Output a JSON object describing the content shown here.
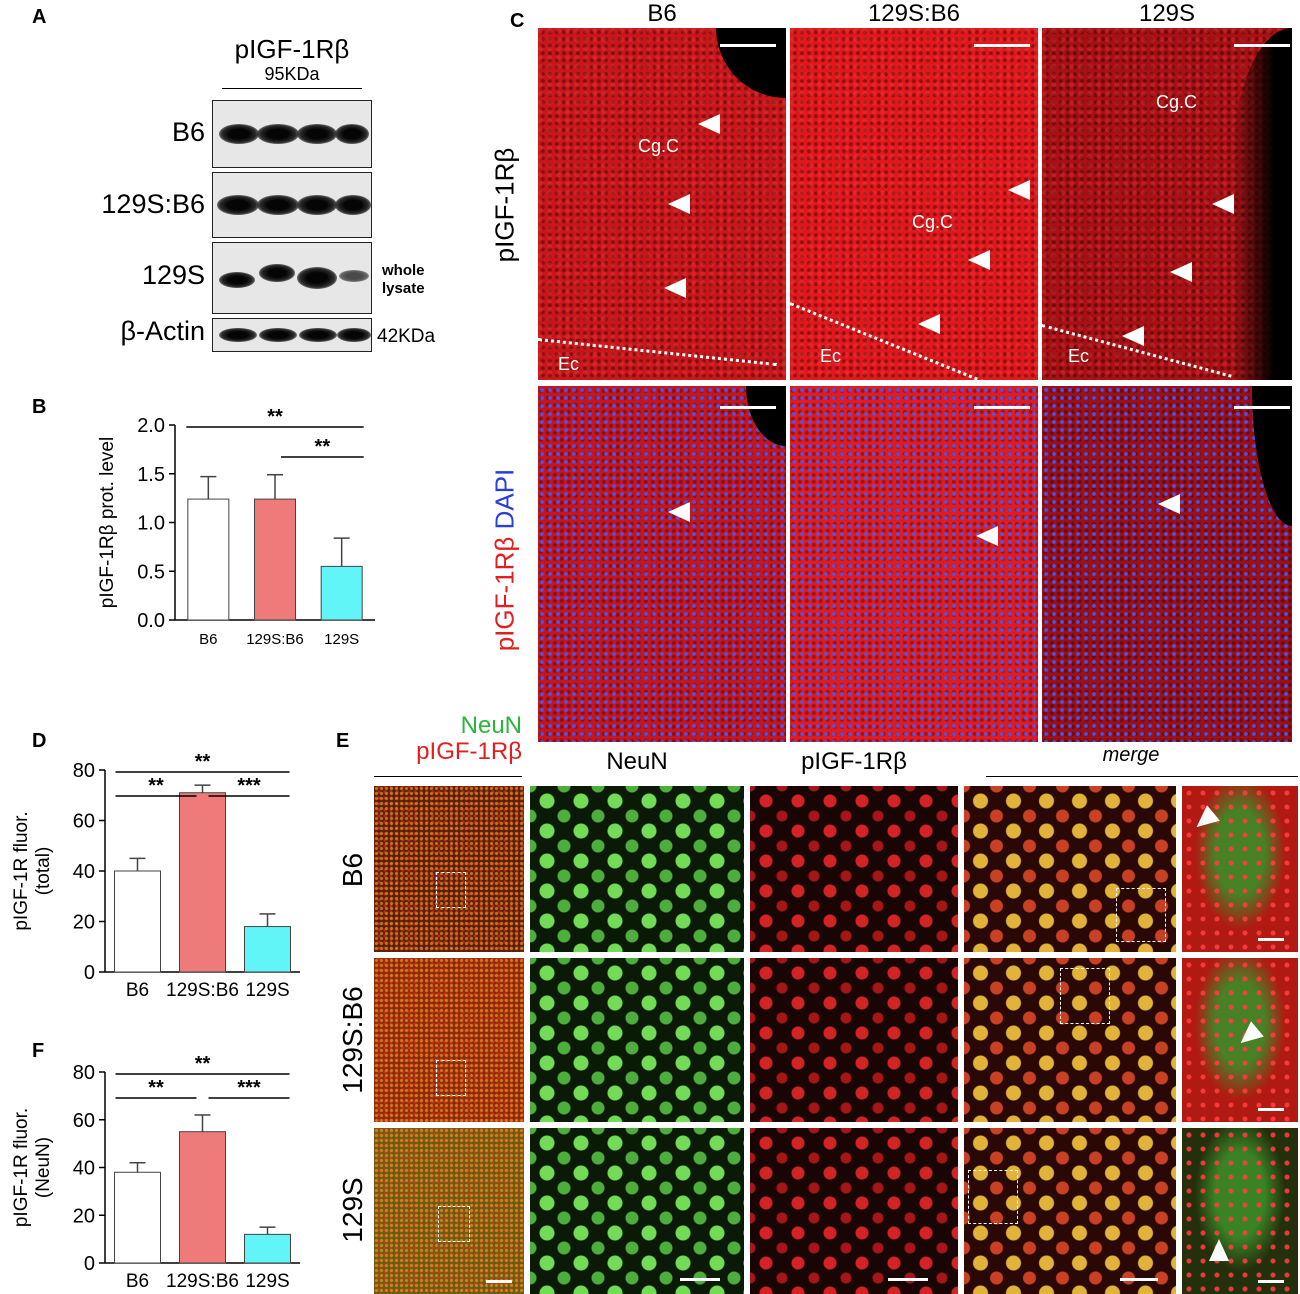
{
  "panel_labels": {
    "a": "A",
    "b": "B",
    "c": "C",
    "d": "D",
    "e": "E",
    "f": "F"
  },
  "blot": {
    "title": "pIGF-1Rβ",
    "mw_top": "95KDa",
    "rows": [
      "B6",
      "129S:B6",
      "129S",
      "β-Actin"
    ],
    "side_note_line1": "whole",
    "side_note_line2": "lysate",
    "mw_bottom": "42KDa"
  },
  "panel_c": {
    "col_headers": [
      "B6",
      "129S:B6",
      "129S"
    ],
    "row_label_top": "pIGF-1Rβ",
    "row_label_bottom_red": "pIGF-1Rβ",
    "row_label_bottom_blue": "DAPI",
    "region_label": "Cg.C",
    "ec_label": "Ec"
  },
  "panel_e": {
    "legend_green": "NeuN",
    "legend_red": "pIGF-1Rβ",
    "col_headers": [
      "NeuN",
      "pIGF-1Rβ",
      "merge"
    ],
    "row_labels": [
      "B6",
      "129S:B6",
      "129S"
    ]
  },
  "chart_data": [
    {
      "id": "B",
      "type": "bar",
      "categories": [
        "B6",
        "129S:B6",
        "129S"
      ],
      "values": [
        1.24,
        1.24,
        0.55
      ],
      "errors": [
        0.23,
        0.25,
        0.29
      ],
      "colors": [
        "#ffffff",
        "#ee7b7a",
        "#62f5f7"
      ],
      "ylabel": "pIGF-1Rβ prot. level",
      "ylim": [
        0,
        2.0
      ],
      "yticks": [
        "0.0",
        "0.5",
        "1.0",
        "1.5",
        "2.0"
      ],
      "significance": [
        {
          "from": "B6",
          "to": "129S",
          "label": "**"
        },
        {
          "from": "129S:B6",
          "to": "129S",
          "label": "**"
        }
      ]
    },
    {
      "id": "D",
      "type": "bar",
      "categories": [
        "B6",
        "129S:B6",
        "129S"
      ],
      "values": [
        40,
        71,
        18
      ],
      "errors": [
        5,
        3,
        5
      ],
      "colors": [
        "#ffffff",
        "#ee7b7a",
        "#62f5f7"
      ],
      "ylabel": "pIGF-1R fluor. (total)",
      "ylim": [
        0,
        80
      ],
      "yticks": [
        "0",
        "20",
        "40",
        "60",
        "80"
      ],
      "significance": [
        {
          "from": "B6",
          "to": "129S",
          "label": "**"
        },
        {
          "from": "B6",
          "to": "129S:B6",
          "label": "**"
        },
        {
          "from": "129S:B6",
          "to": "129S",
          "label": "***"
        }
      ]
    },
    {
      "id": "F",
      "type": "bar",
      "categories": [
        "B6",
        "129S:B6",
        "129S"
      ],
      "values": [
        38,
        55,
        12
      ],
      "errors": [
        4,
        7,
        3
      ],
      "colors": [
        "#ffffff",
        "#ee7b7a",
        "#62f5f7"
      ],
      "ylabel": "pIGF-1R fluor. (NeuN)",
      "ylim": [
        0,
        80
      ],
      "yticks": [
        "0",
        "20",
        "40",
        "60",
        "80"
      ],
      "significance": [
        {
          "from": "B6",
          "to": "129S",
          "label": "**"
        },
        {
          "from": "B6",
          "to": "129S:B6",
          "label": "**"
        },
        {
          "from": "129S:B6",
          "to": "129S",
          "label": "***"
        }
      ]
    }
  ]
}
